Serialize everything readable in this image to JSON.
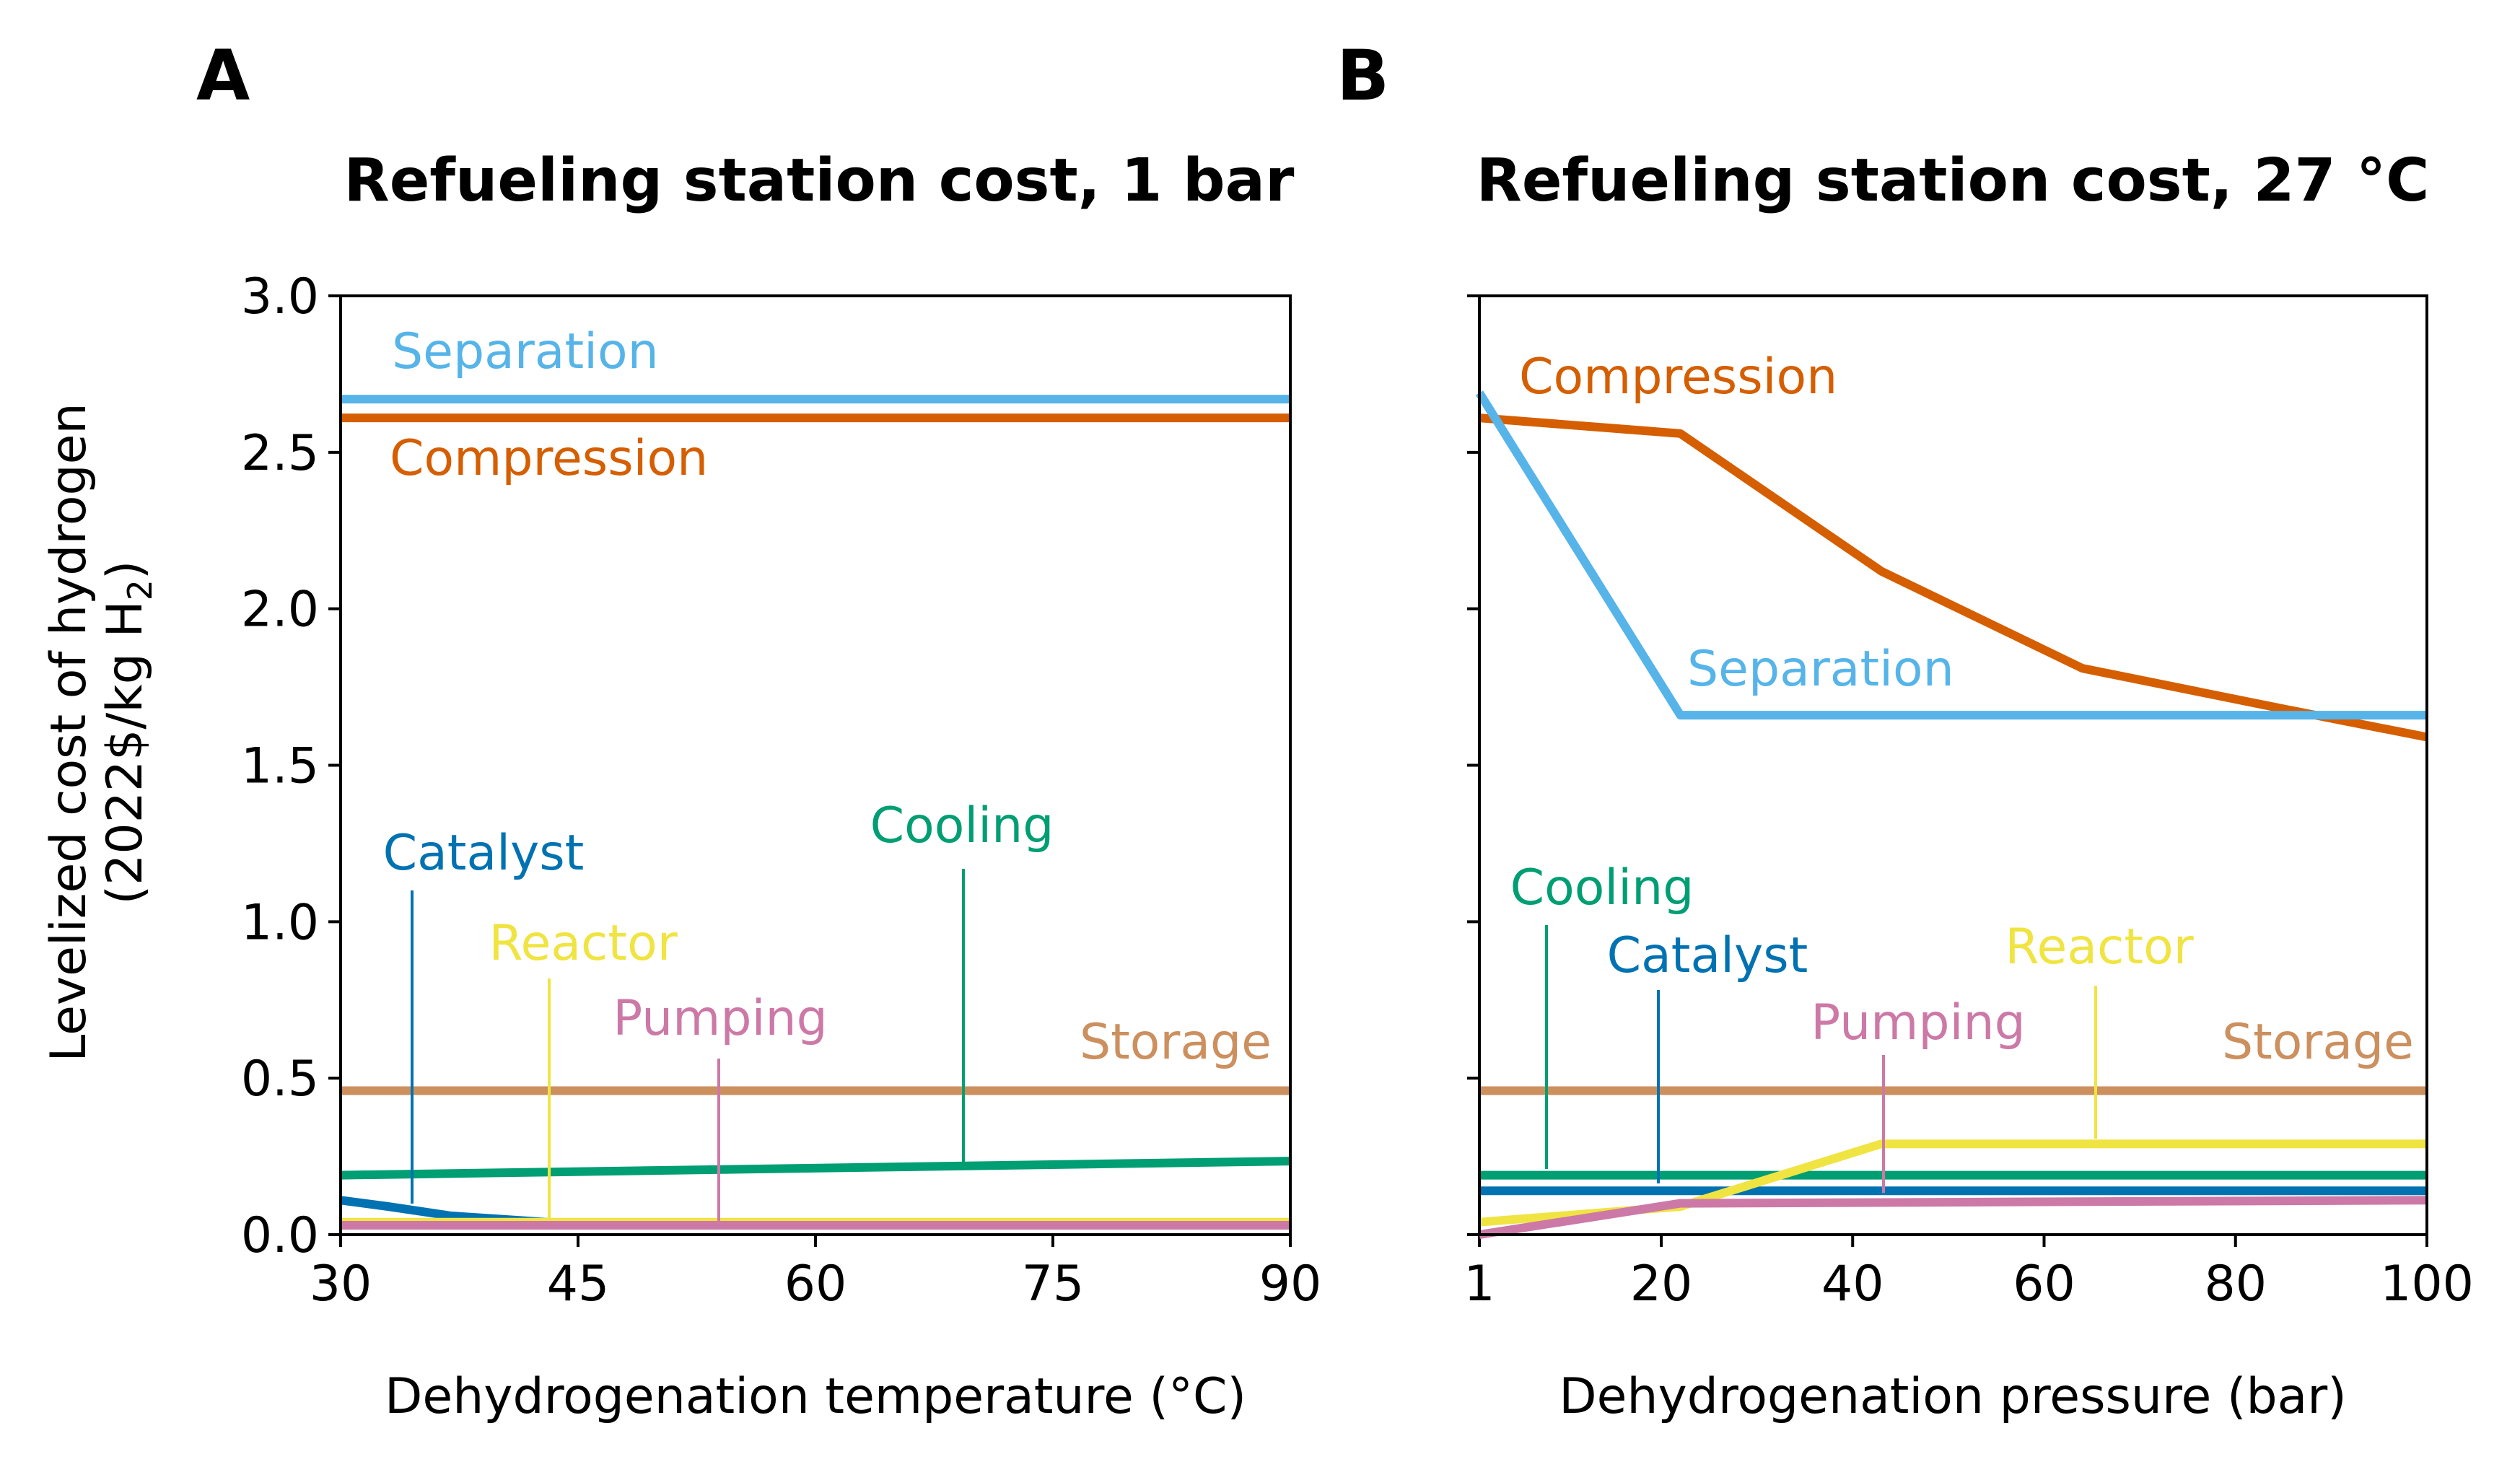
{
  "panels": [
    {
      "letter": "A",
      "title": "Refueling station cost, 1 bar"
    },
    {
      "letter": "B",
      "title": "Refueling station cost, 27 °C"
    }
  ],
  "ylabel_line1": "Levelized cost of hydrogen",
  "ylabel_line2_prefix": "(2022$/kg H",
  "ylabel_line2_sub": "2",
  "ylabel_line2_suffix": ")",
  "colors": {
    "Separation": "#56B4E9",
    "Compression": "#D55E00",
    "Storage": "#CC8F5E",
    "Cooling": "#009E73",
    "Catalyst": "#0072B2",
    "Reactor": "#F0E442",
    "Pumping": "#CC79A7"
  },
  "chart_data": [
    {
      "type": "line",
      "title": "Refueling station cost, 1 bar",
      "xlabel": "Dehydrogenation temperature (°C)",
      "ylabel": "Levelized cost of hydrogen (2022$/kg H2)",
      "xlim": [
        30,
        90
      ],
      "ylim": [
        0,
        3.0
      ],
      "xticks": [
        30,
        45,
        60,
        75,
        90
      ],
      "yticks": [
        0.0,
        0.5,
        1.0,
        1.5,
        2.0,
        2.5,
        3.0
      ],
      "ytick_labels": [
        "0.0",
        "0.5",
        "1.0",
        "1.5",
        "2.0",
        "2.5",
        "3.0"
      ],
      "grid": false,
      "series": [
        {
          "name": "Separation",
          "x": [
            30,
            90
          ],
          "y": [
            2.67,
            2.67
          ]
        },
        {
          "name": "Compression",
          "x": [
            30,
            90
          ],
          "y": [
            2.61,
            2.61
          ]
        },
        {
          "name": "Storage",
          "x": [
            30,
            90
          ],
          "y": [
            0.46,
            0.46
          ]
        },
        {
          "name": "Cooling",
          "x": [
            30,
            90
          ],
          "y": [
            0.19,
            0.235
          ]
        },
        {
          "name": "Catalyst",
          "x": [
            30,
            33,
            37,
            43,
            50,
            90
          ],
          "y": [
            0.11,
            0.09,
            0.06,
            0.04,
            0.03,
            0.03
          ]
        },
        {
          "name": "Reactor",
          "x": [
            30,
            90
          ],
          "y": [
            0.04,
            0.04
          ]
        },
        {
          "name": "Pumping",
          "x": [
            30,
            90
          ],
          "y": [
            0.03,
            0.03
          ]
        }
      ],
      "annotations": [
        {
          "text": "Separation",
          "series": "Separation"
        },
        {
          "text": "Compression",
          "series": "Compression"
        },
        {
          "text": "Storage",
          "series": "Storage"
        },
        {
          "text": "Catalyst",
          "series": "Catalyst"
        },
        {
          "text": "Reactor",
          "series": "Reactor"
        },
        {
          "text": "Pumping",
          "series": "Pumping"
        },
        {
          "text": "Cooling",
          "series": "Cooling"
        }
      ]
    },
    {
      "type": "line",
      "title": "Refueling station cost, 27 °C",
      "xlabel": "Dehydrogenation pressure (bar)",
      "xlim": [
        1,
        100
      ],
      "ylim": [
        0,
        3.0
      ],
      "xticks": [
        1,
        20,
        40,
        60,
        80,
        100
      ],
      "grid": false,
      "series": [
        {
          "name": "Compression",
          "x": [
            1,
            22,
            43,
            64,
            85,
            100
          ],
          "y": [
            2.61,
            2.56,
            2.12,
            1.81,
            1.68,
            1.59
          ]
        },
        {
          "name": "Separation",
          "x": [
            1,
            22,
            100
          ],
          "y": [
            2.69,
            1.66,
            1.66
          ]
        },
        {
          "name": "Storage",
          "x": [
            1,
            100
          ],
          "y": [
            0.46,
            0.46
          ]
        },
        {
          "name": "Cooling",
          "x": [
            1,
            100
          ],
          "y": [
            0.19,
            0.19
          ]
        },
        {
          "name": "Catalyst",
          "x": [
            1,
            100
          ],
          "y": [
            0.14,
            0.14
          ]
        },
        {
          "name": "Reactor",
          "x": [
            1,
            22,
            43,
            100
          ],
          "y": [
            0.04,
            0.09,
            0.29,
            0.29
          ]
        },
        {
          "name": "Pumping",
          "x": [
            1,
            22,
            100
          ],
          "y": [
            0.0,
            0.1,
            0.11
          ]
        }
      ],
      "annotations": [
        {
          "text": "Compression",
          "series": "Compression"
        },
        {
          "text": "Separation",
          "series": "Separation"
        },
        {
          "text": "Cooling",
          "series": "Cooling"
        },
        {
          "text": "Catalyst",
          "series": "Catalyst"
        },
        {
          "text": "Reactor",
          "series": "Reactor"
        },
        {
          "text": "Pumping",
          "series": "Pumping"
        },
        {
          "text": "Storage",
          "series": "Storage"
        }
      ]
    }
  ]
}
